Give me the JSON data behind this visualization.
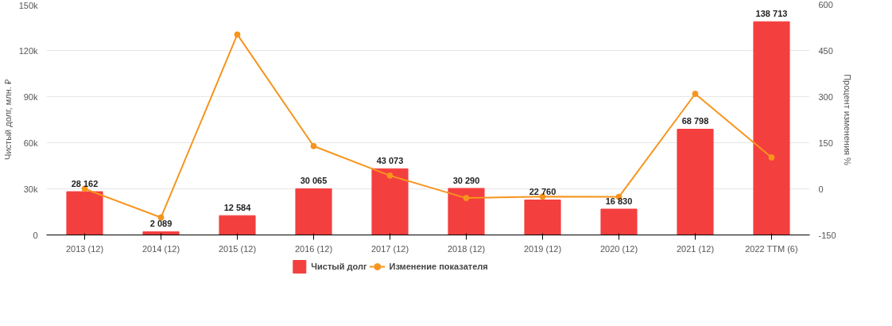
{
  "chart_data": {
    "type": "bar",
    "categories": [
      "2013 (12)",
      "2014 (12)",
      "2015 (12)",
      "2016 (12)",
      "2017 (12)",
      "2018 (12)",
      "2019 (12)",
      "2020 (12)",
      "2021 (12)",
      "2022 TTM (6)"
    ],
    "series": [
      {
        "name": "Чистый долг",
        "color": "#f43f3f",
        "values": [
          28162,
          2089,
          12584,
          30065,
          43073,
          30290,
          22760,
          16830,
          68798,
          138713
        ],
        "value_labels": [
          "28 162",
          "2 089",
          "12 584",
          "30 065",
          "43 073",
          "30 290",
          "22 760",
          "16 830",
          "68 798",
          "138 713"
        ]
      },
      {
        "name": "Изменение показателя",
        "type": "line",
        "axis": "y2",
        "color": "#f7941d",
        "marker": "circle",
        "values": [
          0,
          -93,
          502,
          139,
          43,
          -30,
          -25,
          -26,
          309,
          102
        ]
      }
    ],
    "ylabel": "Чистый долг, млн. ₽",
    "y2label": "Процент изменения %",
    "ylim": [
      0,
      150000
    ],
    "yticks": [
      {
        "value": 0,
        "label": "0"
      },
      {
        "value": 30000,
        "label": "30k"
      },
      {
        "value": 60000,
        "label": "60k"
      },
      {
        "value": 90000,
        "label": "90k"
      },
      {
        "value": 120000,
        "label": "120k"
      },
      {
        "value": 150000,
        "label": "150k"
      }
    ],
    "y2lim": [
      -150,
      600
    ],
    "y2ticks": [
      -150,
      0,
      150,
      300,
      450,
      600
    ],
    "grid": "y",
    "legend": "bottom"
  }
}
